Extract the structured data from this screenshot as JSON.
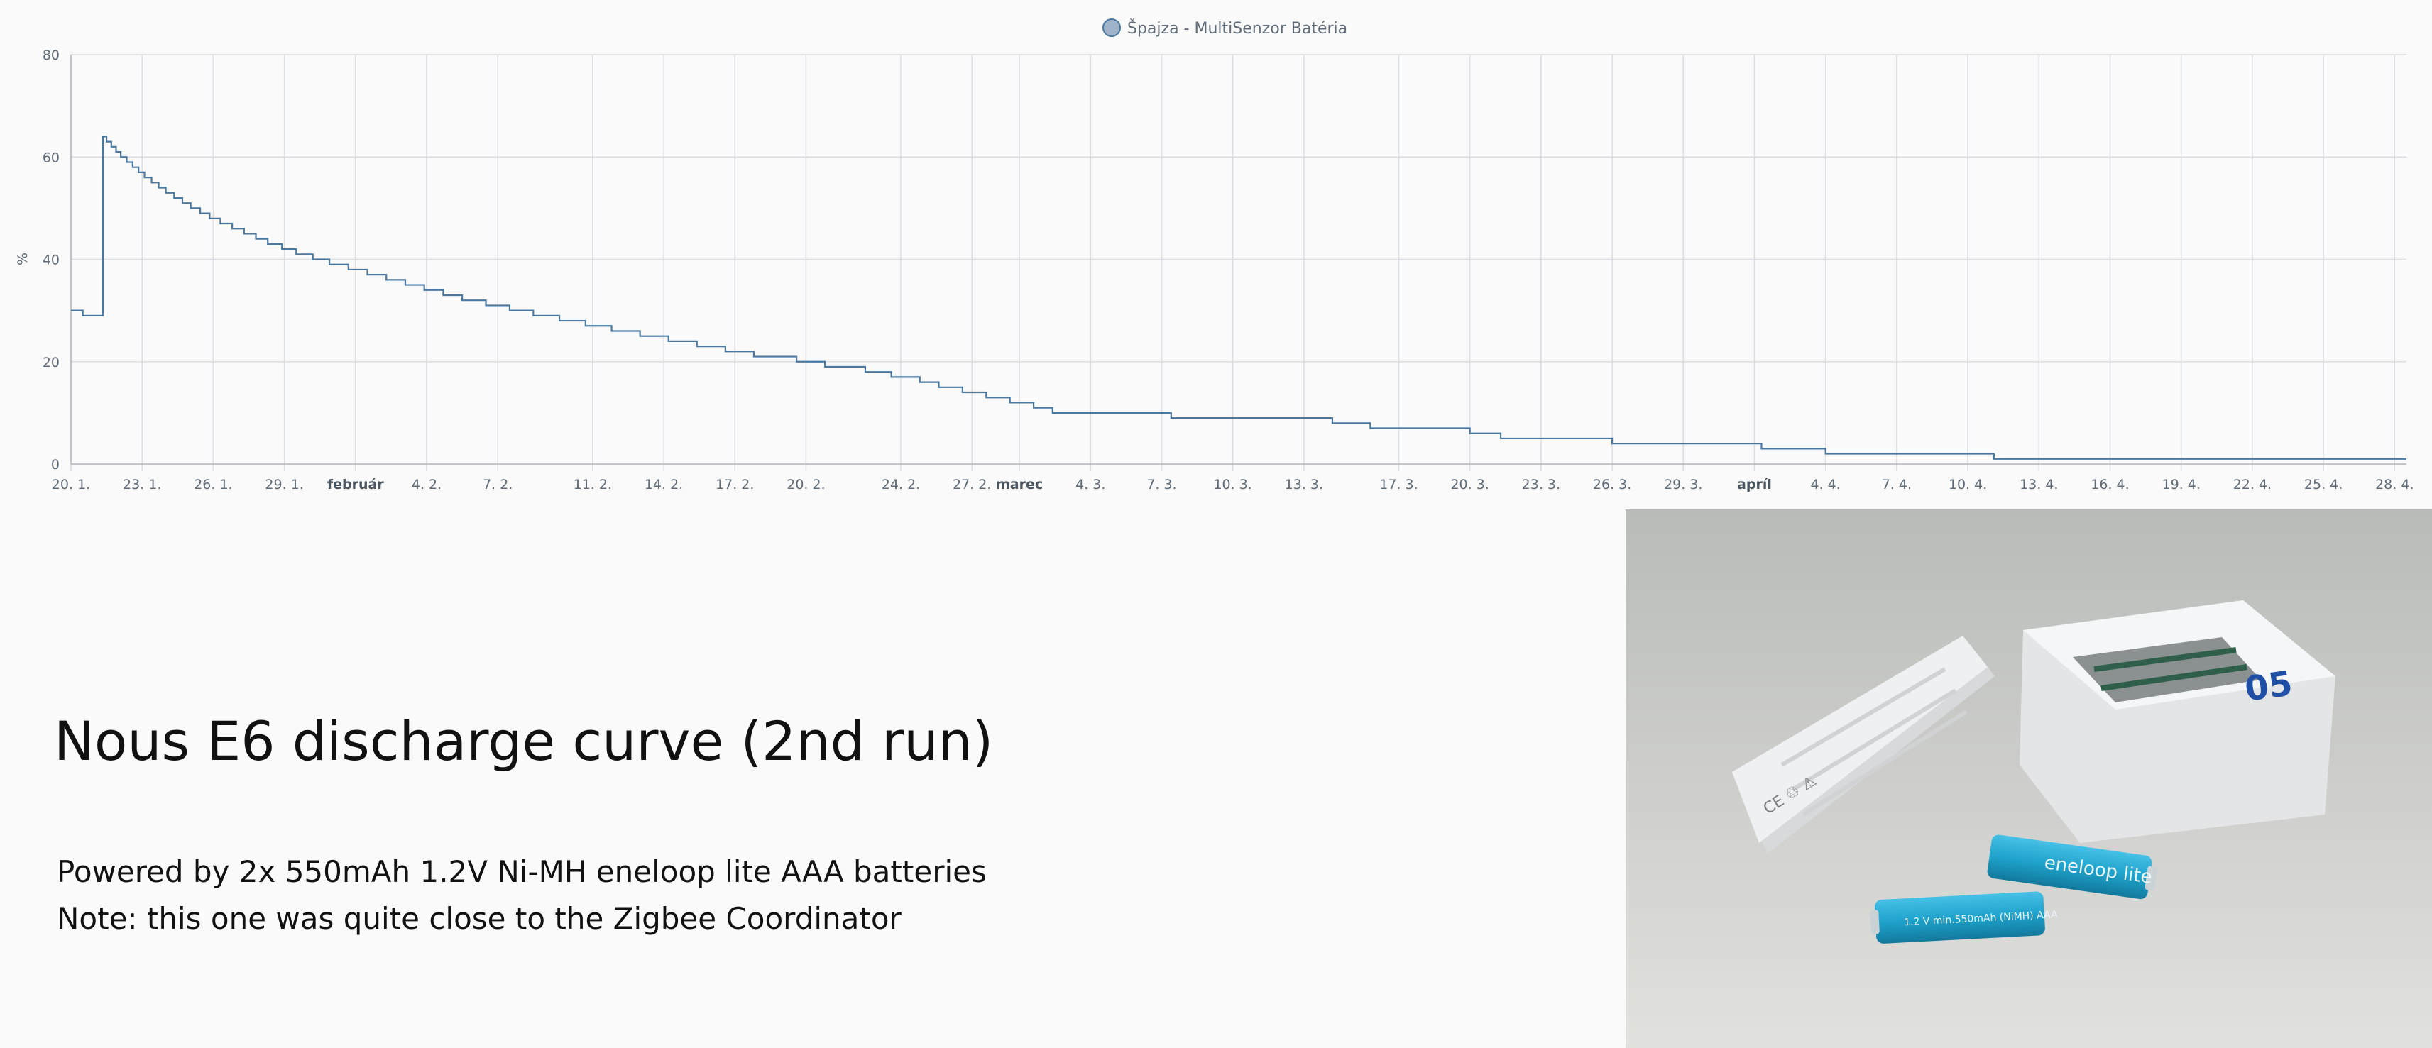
{
  "chart_data": {
    "type": "line",
    "step": true,
    "legend": {
      "label": "Špajza - MultiSenzor Batéria",
      "placement": "top-center"
    },
    "ylabel": "%",
    "ylim": [
      0,
      80
    ],
    "yticks": [
      0,
      20,
      40,
      60,
      80
    ],
    "xlim_day": [
      0,
      98.5
    ],
    "xticks": [
      {
        "label": "20. 1.",
        "day": 0
      },
      {
        "label": "23. 1.",
        "day": 3
      },
      {
        "label": "26. 1.",
        "day": 6
      },
      {
        "label": "29. 1.",
        "day": 9
      },
      {
        "label": "február",
        "day": 12,
        "bold": true
      },
      {
        "label": "4. 2.",
        "day": 15
      },
      {
        "label": "7. 2.",
        "day": 18
      },
      {
        "label": "11. 2.",
        "day": 22
      },
      {
        "label": "14. 2.",
        "day": 25
      },
      {
        "label": "17. 2.",
        "day": 28
      },
      {
        "label": "20. 2.",
        "day": 31
      },
      {
        "label": "24. 2.",
        "day": 35
      },
      {
        "label": "27. 2.",
        "day": 38
      },
      {
        "label": "marec",
        "day": 40,
        "bold": true
      },
      {
        "label": "4. 3.",
        "day": 43
      },
      {
        "label": "7. 3.",
        "day": 46
      },
      {
        "label": "10. 3.",
        "day": 49
      },
      {
        "label": "13. 3.",
        "day": 52
      },
      {
        "label": "17. 3.",
        "day": 56
      },
      {
        "label": "20. 3.",
        "day": 59
      },
      {
        "label": "23. 3.",
        "day": 62
      },
      {
        "label": "26. 3.",
        "day": 65
      },
      {
        "label": "29. 3.",
        "day": 68
      },
      {
        "label": "apríl",
        "day": 71,
        "bold": true
      },
      {
        "label": "4. 4.",
        "day": 74
      },
      {
        "label": "7. 4.",
        "day": 77
      },
      {
        "label": "10. 4.",
        "day": 80
      },
      {
        "label": "13. 4.",
        "day": 83
      },
      {
        "label": "16. 4.",
        "day": 86
      },
      {
        "label": "19. 4.",
        "day": 89
      },
      {
        "label": "22. 4.",
        "day": 92
      },
      {
        "label": "25. 4.",
        "day": 95
      },
      {
        "label": "28. 4.",
        "day": 98
      }
    ],
    "series_color": "#4a78a0",
    "series": [
      {
        "points": [
          [
            0,
            30
          ],
          [
            0.5,
            29
          ],
          [
            1.35,
            64
          ],
          [
            1.5,
            63
          ],
          [
            1.7,
            62
          ],
          [
            1.9,
            61
          ],
          [
            2.1,
            60
          ],
          [
            2.35,
            59
          ],
          [
            2.6,
            58
          ],
          [
            2.85,
            57
          ],
          [
            3.1,
            56
          ],
          [
            3.4,
            55
          ],
          [
            3.7,
            54
          ],
          [
            4.0,
            53
          ],
          [
            4.35,
            52
          ],
          [
            4.7,
            51
          ],
          [
            5.05,
            50
          ],
          [
            5.45,
            49
          ],
          [
            5.85,
            48
          ],
          [
            6.3,
            47
          ],
          [
            6.8,
            46
          ],
          [
            7.3,
            45
          ],
          [
            7.8,
            44
          ],
          [
            8.3,
            43
          ],
          [
            8.9,
            42
          ],
          [
            9.5,
            41
          ],
          [
            10.2,
            40
          ],
          [
            10.9,
            39
          ],
          [
            11.7,
            38
          ],
          [
            12.5,
            37
          ],
          [
            13.3,
            36
          ],
          [
            14.1,
            35
          ],
          [
            14.9,
            34
          ],
          [
            15.7,
            33
          ],
          [
            16.5,
            32
          ],
          [
            17.5,
            31
          ],
          [
            18.5,
            30
          ],
          [
            19.5,
            29
          ],
          [
            20.6,
            28
          ],
          [
            21.7,
            27
          ],
          [
            22.8,
            26
          ],
          [
            24.0,
            25
          ],
          [
            25.2,
            24
          ],
          [
            26.4,
            23
          ],
          [
            27.6,
            22
          ],
          [
            28.8,
            21
          ],
          [
            30.6,
            20
          ],
          [
            31.8,
            19
          ],
          [
            33.5,
            18
          ],
          [
            34.6,
            17
          ],
          [
            35.8,
            16
          ],
          [
            36.6,
            15
          ],
          [
            37.6,
            14
          ],
          [
            38.6,
            13
          ],
          [
            39.6,
            12
          ],
          [
            40.6,
            11
          ],
          [
            41.4,
            10
          ],
          [
            46.4,
            9
          ],
          [
            53.2,
            8
          ],
          [
            54.8,
            7
          ],
          [
            59.0,
            6
          ],
          [
            60.3,
            5
          ],
          [
            65.0,
            4
          ],
          [
            71.3,
            3
          ],
          [
            74.0,
            2
          ],
          [
            81.1,
            1
          ],
          [
            98.5,
            1
          ]
        ]
      }
    ]
  },
  "text": {
    "heading": "Nous E6 discharge curve (2nd run)",
    "line1": "Powered by 2x 550mAh 1.2V Ni-MH eneloop lite AAA batteries",
    "line2": "Note: this one was quite close to the Zigbee Coordinator"
  },
  "photo": {
    "battery_brand": "eneloop lite",
    "battery_print": "1.2 V min.550mAh (NiMH) AAA",
    "box_label": "05",
    "colors": {
      "battery": "#1fa3cc",
      "box": "#f1f2f3",
      "surface": "#c9cac7"
    }
  }
}
